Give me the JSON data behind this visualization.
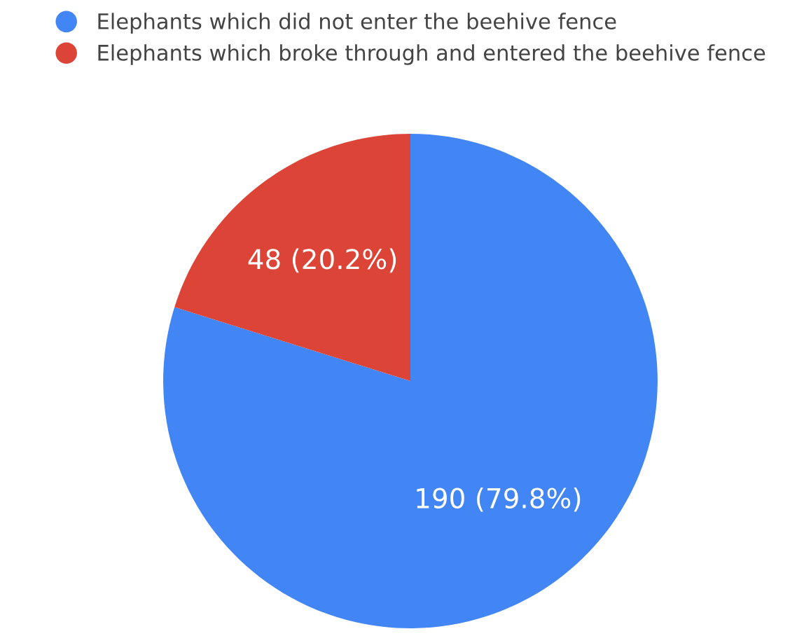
{
  "chart_data": {
    "type": "pie",
    "categories": [
      "Elephants which did not enter the beehive fence",
      "Elephants which broke through and entered the beehive fence"
    ],
    "values": [
      190,
      48
    ],
    "colors": [
      "#4285f4",
      "#db4437"
    ],
    "value_labels": [
      "190 (79.8%)",
      "48 (20.2%)"
    ],
    "legend": "top"
  }
}
